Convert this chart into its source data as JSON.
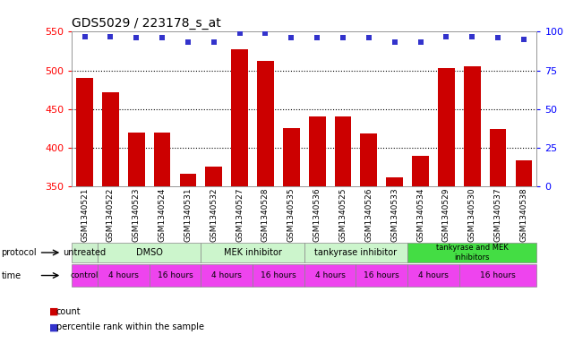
{
  "title": "GDS5029 / 223178_s_at",
  "samples": [
    "GSM1340521",
    "GSM1340522",
    "GSM1340523",
    "GSM1340524",
    "GSM1340531",
    "GSM1340532",
    "GSM1340527",
    "GSM1340528",
    "GSM1340535",
    "GSM1340536",
    "GSM1340525",
    "GSM1340526",
    "GSM1340533",
    "GSM1340534",
    "GSM1340529",
    "GSM1340530",
    "GSM1340537",
    "GSM1340538"
  ],
  "bar_values": [
    490,
    472,
    420,
    420,
    366,
    376,
    527,
    512,
    425,
    440,
    440,
    418,
    362,
    390,
    503,
    505,
    424,
    384
  ],
  "blue_dot_values": [
    97,
    97,
    96,
    96,
    93,
    93,
    99,
    99,
    96,
    96,
    96,
    96,
    93,
    93,
    97,
    97,
    96,
    95
  ],
  "ymin": 350,
  "ymax": 550,
  "yticks": [
    350,
    400,
    450,
    500,
    550
  ],
  "y2min": 0,
  "y2max": 100,
  "y2ticks": [
    0,
    25,
    50,
    75,
    100
  ],
  "bar_color": "#cc0000",
  "dot_color": "#3333cc",
  "bg_color": "#ffffff",
  "plot_bg": "#ffffff",
  "proto_groups": [
    [
      0,
      1,
      "#ccf0cc",
      "untreated"
    ],
    [
      1,
      5,
      "#ccf5cc",
      "DMSO"
    ],
    [
      5,
      9,
      "#ccf5cc",
      "MEK inhibitor"
    ],
    [
      9,
      13,
      "#ccf5cc",
      "tankyrase inhibitor"
    ],
    [
      13,
      18,
      "#44dd44",
      "tankyrase and MEK\ninhibitors"
    ]
  ],
  "time_groups": [
    [
      0,
      1,
      "#ee44ee",
      "control"
    ],
    [
      1,
      3,
      "#ee44ee",
      "4 hours"
    ],
    [
      3,
      5,
      "#ee44ee",
      "16 hours"
    ],
    [
      5,
      7,
      "#ee44ee",
      "4 hours"
    ],
    [
      7,
      9,
      "#ee44ee",
      "16 hours"
    ],
    [
      9,
      11,
      "#ee44ee",
      "4 hours"
    ],
    [
      11,
      13,
      "#ee44ee",
      "16 hours"
    ],
    [
      13,
      15,
      "#ee44ee",
      "4 hours"
    ],
    [
      15,
      18,
      "#ee44ee",
      "16 hours"
    ]
  ]
}
